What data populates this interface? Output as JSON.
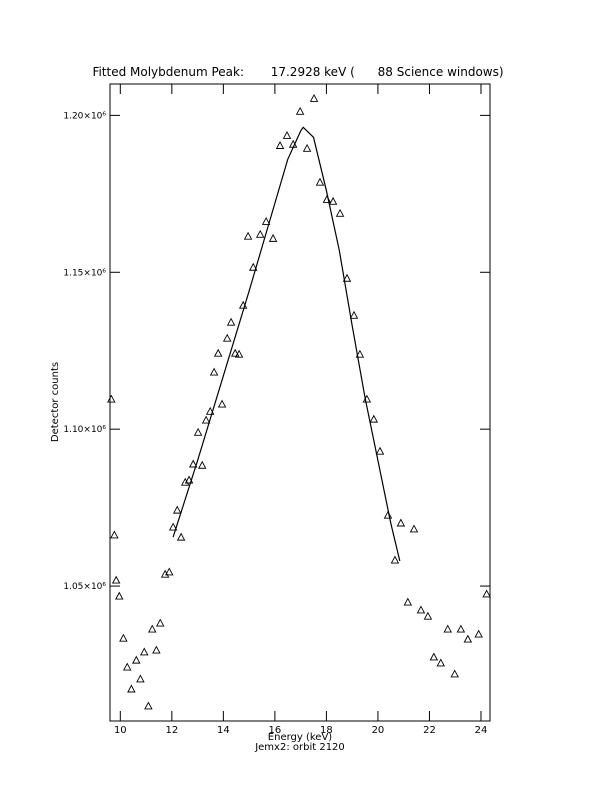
{
  "chart_data": {
    "type": "scatter",
    "title": "Fitted Molybdenum Peak:       17.2928 keV (      88 Science windows)",
    "x_label": "Energy (keV)",
    "subtitle": "Jemx2: orbit 2120",
    "y_label": "Detector counts",
    "xlim": [
      9.6,
      24.35
    ],
    "ylim": [
      1007000,
      1210000
    ],
    "xticks": [
      10,
      12,
      14,
      16,
      18,
      20,
      22,
      24
    ],
    "yticks": [
      {
        "value": 1050000,
        "label": "1.05×10⁶"
      },
      {
        "value": 1100000,
        "label": "1.10×10⁶"
      },
      {
        "value": 1150000,
        "label": "1.15×10⁶"
      },
      {
        "value": 1200000,
        "label": "1.20×10⁶"
      }
    ],
    "series": [
      {
        "color": "#000000",
        "marker": "triangle",
        "x": [
          9.65,
          9.77,
          9.84,
          9.96,
          10.12,
          10.27,
          10.43,
          10.62,
          10.78,
          10.93,
          11.09,
          11.24,
          11.4,
          11.55,
          11.74,
          11.9,
          12.05,
          12.21,
          12.36,
          12.52,
          12.67,
          12.83,
          13.02,
          13.18,
          13.33,
          13.49,
          13.64,
          13.8,
          13.95,
          14.15,
          14.3,
          14.46,
          14.61,
          14.77,
          14.96,
          15.16,
          15.43,
          15.66,
          15.93,
          16.2,
          16.47,
          16.71,
          16.98,
          17.25,
          17.52,
          17.75,
          18.02,
          18.26,
          18.53,
          18.8,
          19.07,
          19.3,
          19.57,
          19.84,
          20.08,
          20.39,
          20.66,
          20.89,
          21.16,
          21.4,
          21.67,
          21.94,
          22.17,
          22.44,
          22.71,
          22.98,
          23.22,
          23.49,
          23.91,
          24.22
        ],
        "values": [
          1109600,
          1066300,
          1051900,
          1046800,
          1033400,
          1024200,
          1017200,
          1026400,
          1020400,
          1029000,
          1011800,
          1036300,
          1029600,
          1038200,
          1053800,
          1054500,
          1068800,
          1074200,
          1065600,
          1083100,
          1083800,
          1088900,
          1099000,
          1088500,
          1102900,
          1105700,
          1118200,
          1124200,
          1108000,
          1129000,
          1134100,
          1124200,
          1123900,
          1139500,
          1161500,
          1151600,
          1162100,
          1166200,
          1160800,
          1190400,
          1193600,
          1190800,
          1201300,
          1189500,
          1205400,
          1178700,
          1173200,
          1172600,
          1168800,
          1148100,
          1136300,
          1123900,
          1109600,
          1103200,
          1093000,
          1072600,
          1058300,
          1070100,
          1044900,
          1068200,
          1042400,
          1040400,
          1027400,
          1025500,
          1036300,
          1022000,
          1036300,
          1033100,
          1034700,
          1047500
        ]
      },
      {
        "color": "#000000",
        "style": "line",
        "x": [
          12.05,
          13,
          14,
          15,
          16,
          16.5,
          17,
          17.1,
          17.5,
          18,
          18.5,
          19,
          19.5,
          20,
          20.5,
          20.85
        ],
        "values": [
          1065600,
          1090000,
          1117000,
          1144000,
          1172000,
          1186000,
          1195000,
          1196200,
          1193000,
          1176000,
          1157000,
          1133000,
          1110000,
          1090000,
          1070000,
          1058000
        ]
      }
    ]
  }
}
